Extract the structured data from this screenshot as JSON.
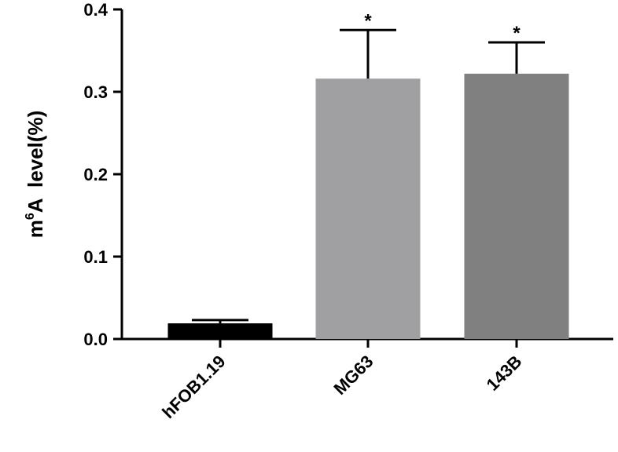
{
  "chart_data": {
    "type": "bar",
    "categories": [
      "hFOB1.19",
      "MG63",
      "143B"
    ],
    "values": [
      0.019,
      0.316,
      0.322
    ],
    "errors": [
      0.004,
      0.059,
      0.038
    ],
    "significance": [
      "",
      "*",
      "*"
    ],
    "colors": [
      "#000000",
      "#a0a0a3",
      "#808080"
    ],
    "ylabel_main": "m",
    "ylabel_sup": "6",
    "ylabel_rest": "A  level(%)",
    "ylim": [
      0,
      0.4
    ],
    "yticks": [
      0,
      0.1,
      0.2,
      0.3,
      0.4
    ],
    "ytick_labels": [
      "0.0",
      "0.1",
      "0.2",
      "0.3",
      "0.4"
    ],
    "grid": false
  }
}
